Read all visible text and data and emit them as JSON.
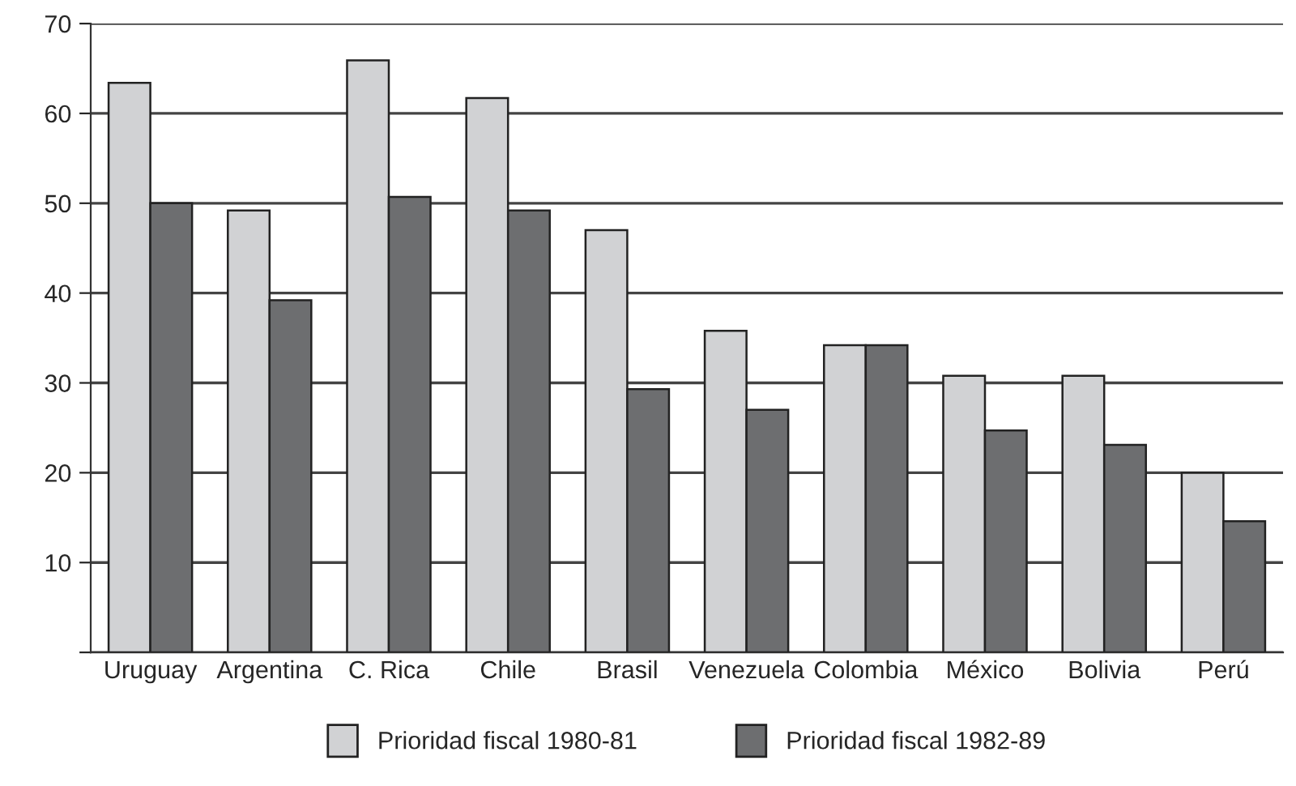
{
  "chart_data": {
    "type": "bar",
    "categories": [
      "Uruguay",
      "Argentina",
      "C. Rica",
      "Chile",
      "Brasil",
      "Venezuela",
      "Colombia",
      "México",
      "Bolivia",
      "Perú"
    ],
    "series": [
      {
        "name": "Prioridad fiscal 1980-81",
        "color": "#d1d2d4",
        "values": [
          63.4,
          49.2,
          65.9,
          61.7,
          47.0,
          35.8,
          34.2,
          30.8,
          30.8,
          20.0
        ]
      },
      {
        "name": "Prioridad fiscal 1982-89",
        "color": "#6d6e70",
        "values": [
          50.0,
          39.2,
          50.7,
          49.2,
          29.3,
          27.0,
          34.2,
          24.7,
          23.1,
          14.6
        ]
      }
    ],
    "ylim": [
      0,
      70
    ],
    "yticks": [
      {
        "value": 0,
        "label": null
      },
      10,
      20,
      30,
      40,
      50,
      60,
      70
    ],
    "grid": "y",
    "legend": "bottom"
  }
}
